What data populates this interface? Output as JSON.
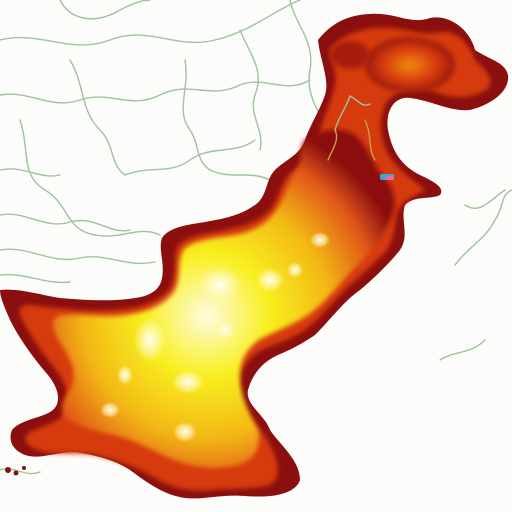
{
  "map": {
    "type": "heatmap-choropleth",
    "colors": {
      "background": "#fcfcfa",
      "boundary_lines": "#9fc49a",
      "heat_low": "#8b0f0f",
      "heat_mid_low": "#d63a0c",
      "heat_mid": "#f08a12",
      "heat_high": "#f5e51a",
      "heat_peak": "#fffbe0",
      "marker_blue": "#3aa7d8"
    },
    "has_text_labels": false,
    "has_legend": false
  }
}
